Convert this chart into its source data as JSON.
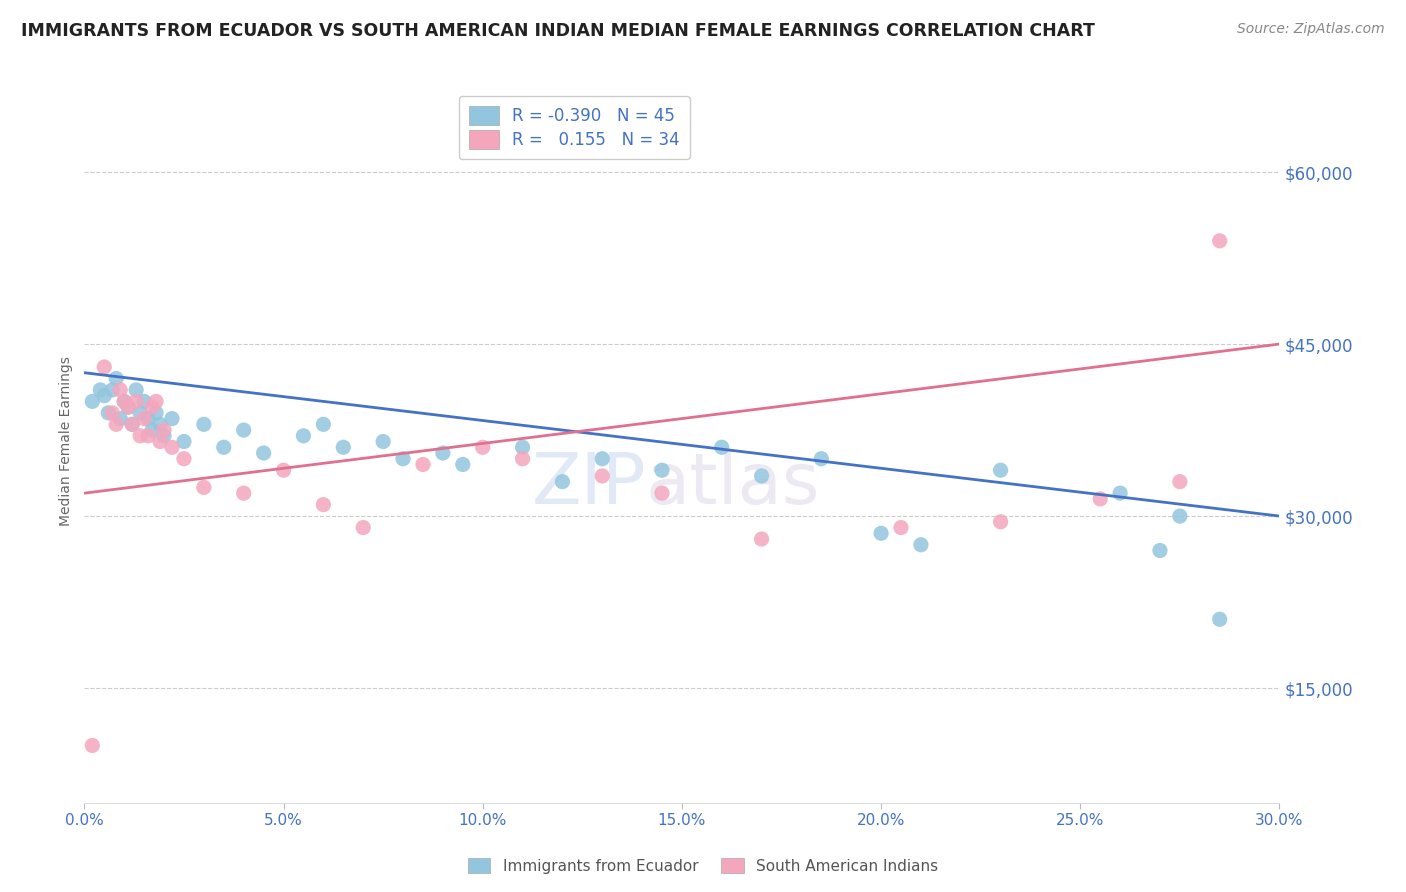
{
  "title": "IMMIGRANTS FROM ECUADOR VS SOUTH AMERICAN INDIAN MEDIAN FEMALE EARNINGS CORRELATION CHART",
  "source": "Source: ZipAtlas.com",
  "ylabel": "Median Female Earnings",
  "xlim": [
    0.0,
    0.3
  ],
  "ylim": [
    5000,
    68000
  ],
  "yticks": [
    15000,
    30000,
    45000,
    60000
  ],
  "ytick_labels": [
    "$15,000",
    "$30,000",
    "$45,000",
    "$60,000"
  ],
  "xtick_vals": [
    0.0,
    0.05,
    0.1,
    0.15,
    0.2,
    0.25,
    0.3
  ],
  "xtick_labels": [
    "0.0%",
    "5.0%",
    "10.0%",
    "15.0%",
    "20.0%",
    "25.0%",
    "30.0%"
  ],
  "blue_R": -0.39,
  "blue_N": 45,
  "pink_R": 0.155,
  "pink_N": 34,
  "blue_color": "#92c5de",
  "pink_color": "#f4a6bd",
  "blue_line_color": "#4472c4",
  "pink_line_color": "#e07090",
  "title_color": "#222222",
  "axis_label_color": "#4472c4",
  "legend_blue_label": "Immigrants from Ecuador",
  "legend_pink_label": "South American Indians",
  "blue_line_x0": 0.0,
  "blue_line_y0": 42500,
  "blue_line_x1": 0.3,
  "blue_line_y1": 30000,
  "pink_line_x0": 0.0,
  "pink_line_y0": 32000,
  "pink_line_x1": 0.3,
  "pink_line_y1": 45000,
  "blue_points_x": [
    0.002,
    0.004,
    0.005,
    0.006,
    0.007,
    0.008,
    0.009,
    0.01,
    0.011,
    0.012,
    0.013,
    0.014,
    0.015,
    0.016,
    0.017,
    0.018,
    0.019,
    0.02,
    0.022,
    0.025,
    0.03,
    0.035,
    0.04,
    0.045,
    0.055,
    0.06,
    0.065,
    0.075,
    0.08,
    0.09,
    0.095,
    0.11,
    0.12,
    0.13,
    0.145,
    0.16,
    0.17,
    0.185,
    0.2,
    0.21,
    0.23,
    0.26,
    0.27,
    0.275,
    0.285
  ],
  "blue_points_y": [
    40000,
    41000,
    40500,
    39000,
    41000,
    42000,
    38500,
    40000,
    39500,
    38000,
    41000,
    39000,
    40000,
    38500,
    37500,
    39000,
    38000,
    37000,
    38500,
    36500,
    38000,
    36000,
    37500,
    35500,
    37000,
    38000,
    36000,
    36500,
    35000,
    35500,
    34500,
    36000,
    33000,
    35000,
    34000,
    36000,
    33500,
    35000,
    28500,
    27500,
    34000,
    32000,
    27000,
    30000,
    21000
  ],
  "pink_points_x": [
    0.002,
    0.005,
    0.007,
    0.008,
    0.009,
    0.01,
    0.011,
    0.012,
    0.013,
    0.014,
    0.015,
    0.016,
    0.017,
    0.018,
    0.019,
    0.02,
    0.022,
    0.025,
    0.03,
    0.04,
    0.05,
    0.06,
    0.07,
    0.085,
    0.1,
    0.11,
    0.13,
    0.145,
    0.17,
    0.205,
    0.23,
    0.255,
    0.275,
    0.285
  ],
  "pink_points_y": [
    10000,
    43000,
    39000,
    38000,
    41000,
    40000,
    39500,
    38000,
    40000,
    37000,
    38500,
    37000,
    39500,
    40000,
    36500,
    37500,
    36000,
    35000,
    32500,
    32000,
    34000,
    31000,
    29000,
    34500,
    36000,
    35000,
    33500,
    32000,
    28000,
    29000,
    29500,
    31500,
    33000,
    54000
  ]
}
